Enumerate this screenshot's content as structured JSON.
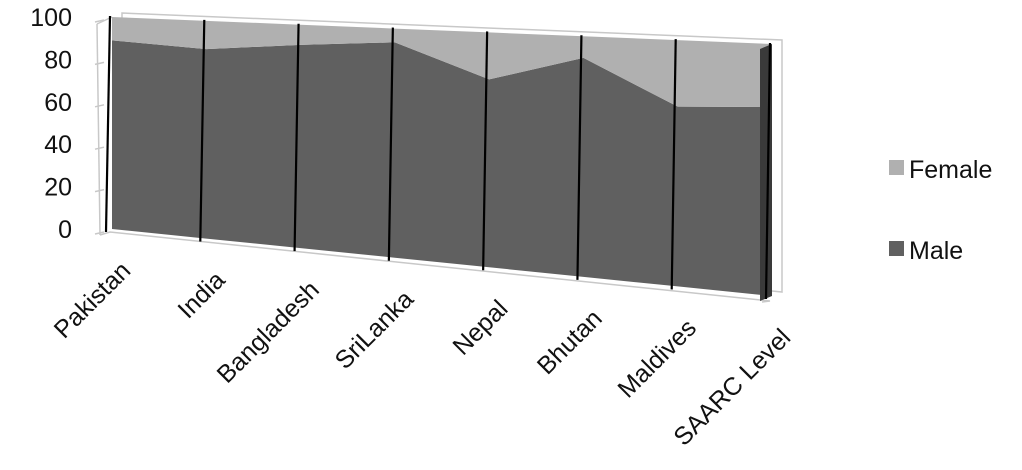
{
  "chart_data": {
    "type": "area",
    "title": "",
    "xlabel": "",
    "ylabel": "",
    "ylim": [
      0,
      100
    ],
    "yticks": [
      0,
      20,
      40,
      60,
      80,
      100
    ],
    "stacked": true,
    "three_d": true,
    "grid": false,
    "legend_position": "right",
    "categories": [
      "Pakistan",
      "India",
      "Bangladesh",
      "SriLanka",
      "Nepal",
      "Bhutan",
      "Maldives",
      "SAARC Level"
    ],
    "series": [
      {
        "name": "Male",
        "color": "#606060",
        "values": [
          89,
          87,
          91,
          94,
          80,
          91,
          73,
          75
        ]
      },
      {
        "name": "Female",
        "color": "#b0b0b0",
        "values": [
          11,
          13,
          9,
          6,
          20,
          9,
          27,
          25
        ]
      }
    ]
  }
}
